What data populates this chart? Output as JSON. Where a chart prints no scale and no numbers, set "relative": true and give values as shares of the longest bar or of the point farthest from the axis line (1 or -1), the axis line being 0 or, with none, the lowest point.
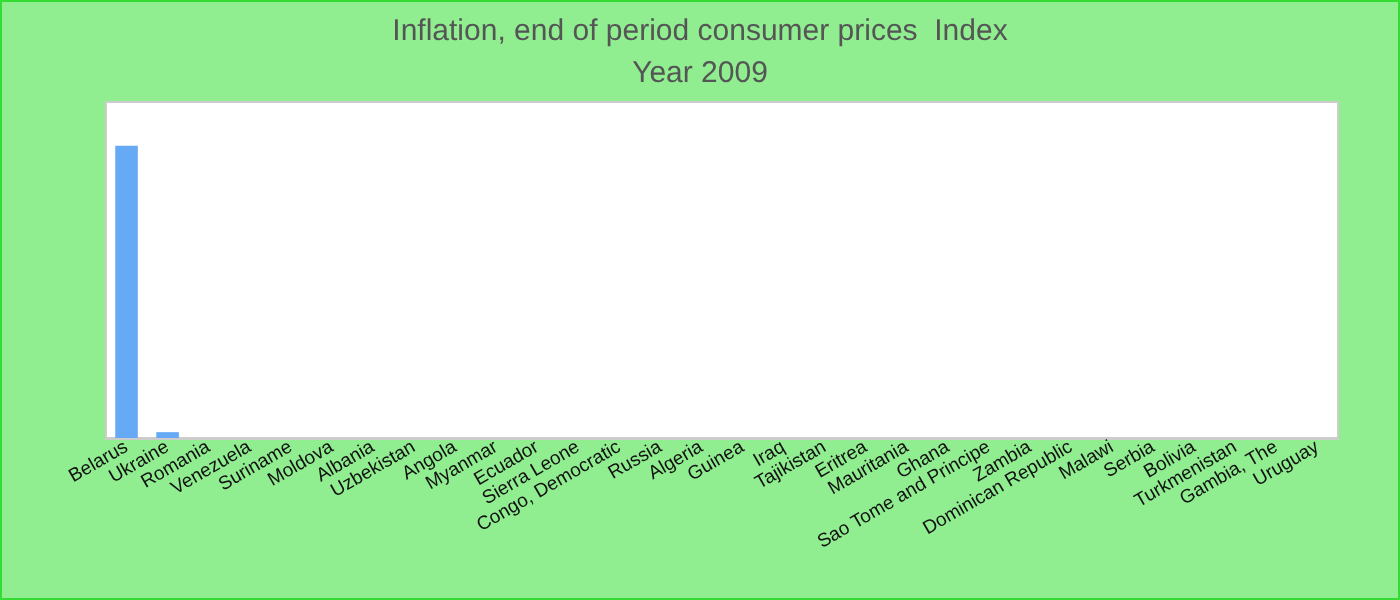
{
  "chart_data": {
    "type": "bar",
    "title": "Inflation, end of period consumer prices  Index",
    "subtitle": "Year 2009",
    "categories": [
      "Belarus",
      "Ukraine",
      "Romania",
      "Venezuela",
      "Suriname",
      "Moldova",
      "Albania",
      "Uzbekistan",
      "Angola",
      "Myanmar",
      "Ecuador",
      "Sierra Leone",
      "Congo, Democratic",
      "Russia",
      "Algeria",
      "Guinea",
      "Iraq",
      "Tajikistan",
      "Eritrea",
      "Mauritania",
      "Ghana",
      "Sao Tome and Principe",
      "Zambia",
      "Dominican Republic",
      "Malawi",
      "Serbia",
      "Bolivia",
      "Turkmenistan",
      "Gambia, The",
      "Uruguay"
    ],
    "values": [
      1,
      0.02,
      0,
      0,
      0,
      0,
      0,
      0,
      0,
      0,
      0,
      0,
      0,
      0,
      0,
      0,
      0,
      0,
      0,
      0,
      0,
      0,
      0,
      0,
      0,
      0,
      0,
      0,
      0,
      0
    ],
    "color": "#66aaf5",
    "relative": true,
    "legend": false
  }
}
